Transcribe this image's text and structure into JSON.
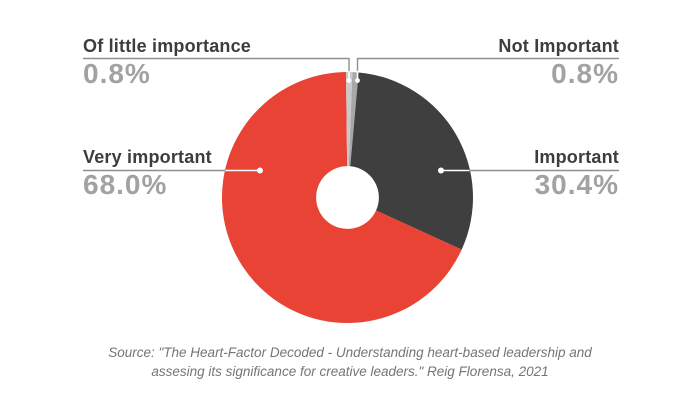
{
  "chart_data": {
    "type": "pie",
    "subtype": "donut",
    "title": "",
    "unit": "%",
    "legend_position": "none",
    "labels_style": "callouts-with-leader-lines",
    "start_angle_deg": 2.2,
    "direction": "clockwise",
    "inner_radius_ratio": 0.25,
    "slices": [
      {
        "label": "Not Important",
        "value": 0.8,
        "color": "#a8a8a8"
      },
      {
        "label": "Important",
        "value": 30.4,
        "color": "#3f3f3f"
      },
      {
        "label": "Very important",
        "value": 68.0,
        "color": "#e94335"
      },
      {
        "label": "Of little importance",
        "value": 0.8,
        "color": "#c9c9c9"
      }
    ]
  },
  "callouts": {
    "top_left": {
      "label": "Of little importance",
      "value": "0.8%"
    },
    "top_right": {
      "label": "Not Important",
      "value": "0.8%"
    },
    "mid_left": {
      "label": "Very important",
      "value": "68.0%"
    },
    "mid_right": {
      "label": "Important",
      "value": "30.4%"
    }
  },
  "source": {
    "line1": "Source: \"The Heart-Factor Decoded - Understanding heart-based leadership and",
    "line2": "assesing its significance for creative leaders.\" Reig Florensa, 2021"
  },
  "colors": {
    "very_important": "#e94335",
    "important": "#3f3f3f",
    "not_important": "#a8a8a8",
    "of_little_importance": "#c9c9c9",
    "leader_line": "#8f8f8f",
    "label_text": "#3d3d3d",
    "value_text": "#a2a2a2",
    "background": "#ffffff"
  }
}
